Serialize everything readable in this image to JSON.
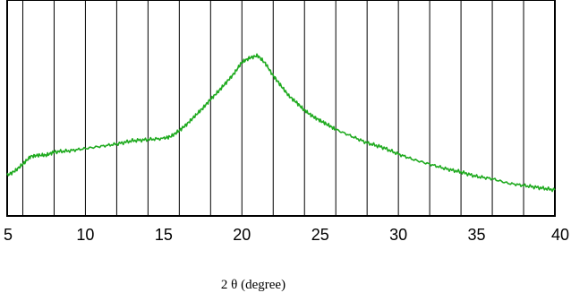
{
  "chart_data": {
    "type": "line",
    "title": "",
    "xlabel": "2 θ (degree)",
    "ylabel": "",
    "xlim": [
      5,
      40
    ],
    "x_ticks": [
      5,
      10,
      15,
      20,
      25,
      30,
      35,
      40
    ],
    "grid": "vertical lines every 2 units",
    "legend": "none",
    "series": [
      {
        "color": "#1faa1f",
        "x": [
          5,
          5.5,
          6,
          6.5,
          7,
          7.5,
          8,
          9,
          10,
          11,
          12,
          13,
          14,
          15,
          15.5,
          16,
          16.5,
          17,
          17.5,
          18,
          18.5,
          19,
          19.5,
          20,
          20.5,
          21,
          21.5,
          22,
          22.5,
          23,
          23.5,
          24,
          24.5,
          25,
          25.5,
          26,
          27,
          28,
          29,
          30,
          31,
          32,
          33,
          34,
          35,
          36,
          37,
          38,
          39,
          40
        ],
        "y": [
          0.13,
          0.17,
          0.23,
          0.3,
          0.31,
          0.31,
          0.34,
          0.35,
          0.37,
          0.39,
          0.41,
          0.44,
          0.45,
          0.46,
          0.48,
          0.53,
          0.59,
          0.66,
          0.73,
          0.81,
          0.88,
          0.96,
          1.04,
          1.14,
          1.18,
          1.2,
          1.13,
          1.02,
          0.93,
          0.84,
          0.78,
          0.71,
          0.66,
          0.62,
          0.58,
          0.54,
          0.48,
          0.42,
          0.38,
          0.32,
          0.27,
          0.23,
          0.19,
          0.16,
          0.12,
          0.1,
          0.06,
          0.04,
          0.02,
          0.0
        ]
      }
    ]
  }
}
